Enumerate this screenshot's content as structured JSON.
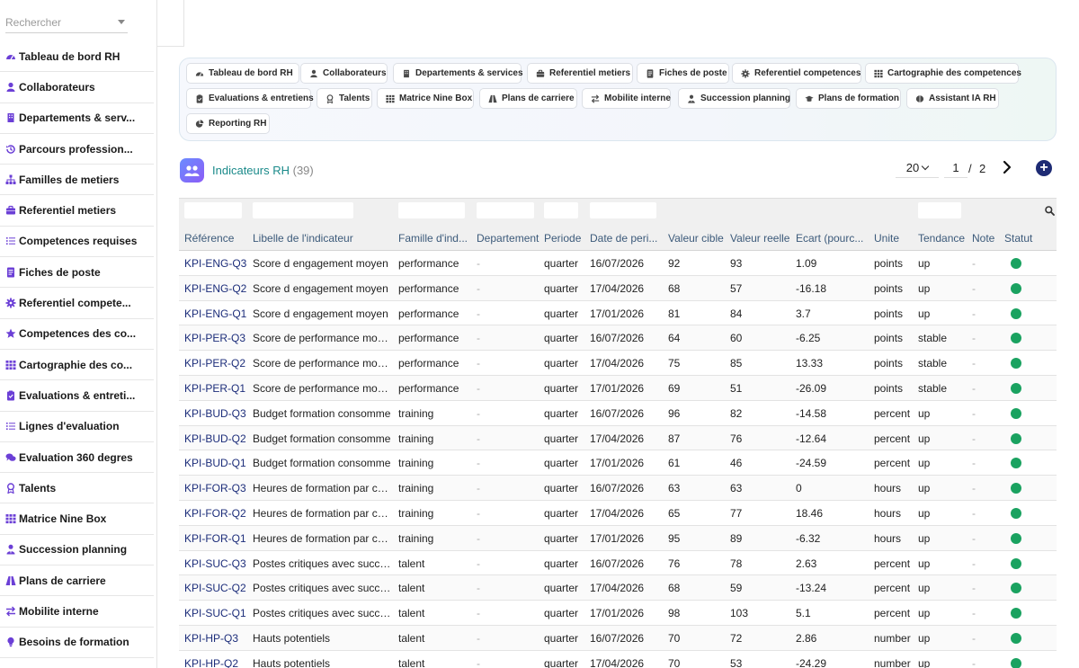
{
  "sidebar": {
    "search_placeholder": "Rechercher",
    "items": [
      {
        "label": "Tableau de bord RH",
        "icon": "dashboard-icon",
        "color": "#6b3fd6"
      },
      {
        "label": "Collaborateurs",
        "icon": "user-icon",
        "color": "#6b3fd6"
      },
      {
        "label": "Departements & serv...",
        "icon": "building-icon",
        "color": "#6b3fd6"
      },
      {
        "label": "Parcours profession...",
        "icon": "history-icon",
        "color": "#6b3fd6"
      },
      {
        "label": "Familles de metiers",
        "icon": "sitemap-icon",
        "color": "#6b3fd6"
      },
      {
        "label": "Referentiel metiers",
        "icon": "briefcase-icon",
        "color": "#6b3fd6"
      },
      {
        "label": "Competences requises",
        "icon": "list-icon",
        "color": "#6b3fd6"
      },
      {
        "label": "Fiches de poste",
        "icon": "file-icon",
        "color": "#6b3fd6"
      },
      {
        "label": "Referentiel compete...",
        "icon": "gear-icon",
        "color": "#6b3fd6"
      },
      {
        "label": "Competences des co...",
        "icon": "star-icon",
        "color": "#6b3fd6"
      },
      {
        "label": "Cartographie des co...",
        "icon": "grid-icon",
        "color": "#6b3fd6"
      },
      {
        "label": "Evaluations & entreti...",
        "icon": "clipboard-icon",
        "color": "#6b3fd6"
      },
      {
        "label": "Lignes d'evaluation",
        "icon": "list-icon",
        "color": "#6b3fd6"
      },
      {
        "label": "Evaluation 360 degres",
        "icon": "comments-icon",
        "color": "#6b3fd6"
      },
      {
        "label": "Talents",
        "icon": "award-icon",
        "color": "#6b3fd6"
      },
      {
        "label": "Matrice Nine Box",
        "icon": "grid-icon",
        "color": "#6b3fd6"
      },
      {
        "label": "Succession planning",
        "icon": "user-tie-icon",
        "color": "#6b3fd6"
      },
      {
        "label": "Plans de carriere",
        "icon": "road-icon",
        "color": "#6b3fd6"
      },
      {
        "label": "Mobilite interne",
        "icon": "exchange-icon",
        "color": "#6b3fd6"
      },
      {
        "label": "Besoins de formation",
        "icon": "lightbulb-icon",
        "color": "#6b3fd6"
      }
    ]
  },
  "tabs": [
    {
      "label": "Tableau de bord RH",
      "icon": "dashboard-icon"
    },
    {
      "label": "Collaborateurs",
      "icon": "user-icon"
    },
    {
      "label": "Departements & services",
      "icon": "building-icon"
    },
    {
      "label": "Referentiel metiers",
      "icon": "briefcase-icon"
    },
    {
      "label": "Fiches de poste",
      "icon": "file-icon"
    },
    {
      "label": "Referentiel competences",
      "icon": "gear-icon"
    },
    {
      "label": "Cartographie des competences",
      "icon": "grid-icon"
    },
    {
      "label": "Evaluations & entretiens",
      "icon": "clipboard-icon"
    },
    {
      "label": "Talents",
      "icon": "award-icon"
    },
    {
      "label": "Matrice Nine Box",
      "icon": "grid-icon"
    },
    {
      "label": "Plans de carriere",
      "icon": "road-icon"
    },
    {
      "label": "Mobilite interne",
      "icon": "exchange-icon"
    },
    {
      "label": "Succession planning",
      "icon": "user-tie-icon"
    },
    {
      "label": "Plans de formation",
      "icon": "graduation-icon"
    },
    {
      "label": "Assistant IA RH",
      "icon": "brain-icon"
    },
    {
      "label": "Reporting RH",
      "icon": "chart-pie-icon"
    }
  ],
  "header": {
    "title": "Indicateurs RH",
    "count": "(39)",
    "per_page": "20",
    "page_current": "1",
    "page_sep": "/",
    "page_total": "2",
    "add_label": "+"
  },
  "table": {
    "columns": [
      "Référence",
      "Libelle de l'indicateur",
      "Famille d'ind...",
      "Departement",
      "Periode",
      "Date de peri...",
      "Valeur cible",
      "Valeur reelle",
      "Ecart (pourc...",
      "Unite",
      "Tendance",
      "Note",
      "Statut"
    ],
    "rows": [
      [
        "KPI-ENG-Q3",
        "Score d engagement moyen",
        "performance",
        "-",
        "quarter",
        "16/07/2026",
        "92",
        "93",
        "1.09",
        "points",
        "up",
        "-"
      ],
      [
        "KPI-ENG-Q2",
        "Score d engagement moyen",
        "performance",
        "-",
        "quarter",
        "17/04/2026",
        "68",
        "57",
        "-16.18",
        "points",
        "up",
        "-"
      ],
      [
        "KPI-ENG-Q1",
        "Score d engagement moyen",
        "performance",
        "-",
        "quarter",
        "17/01/2026",
        "81",
        "84",
        "3.7",
        "points",
        "up",
        "-"
      ],
      [
        "KPI-PER-Q3",
        "Score de performance moyen",
        "performance",
        "-",
        "quarter",
        "16/07/2026",
        "64",
        "60",
        "-6.25",
        "points",
        "stable",
        "-"
      ],
      [
        "KPI-PER-Q2",
        "Score de performance moyen",
        "performance",
        "-",
        "quarter",
        "17/04/2026",
        "75",
        "85",
        "13.33",
        "points",
        "stable",
        "-"
      ],
      [
        "KPI-PER-Q1",
        "Score de performance moyen",
        "performance",
        "-",
        "quarter",
        "17/01/2026",
        "69",
        "51",
        "-26.09",
        "points",
        "stable",
        "-"
      ],
      [
        "KPI-BUD-Q3",
        "Budget formation consomme",
        "training",
        "-",
        "quarter",
        "16/07/2026",
        "96",
        "82",
        "-14.58",
        "percent",
        "up",
        "-"
      ],
      [
        "KPI-BUD-Q2",
        "Budget formation consomme",
        "training",
        "-",
        "quarter",
        "17/04/2026",
        "87",
        "76",
        "-12.64",
        "percent",
        "up",
        "-"
      ],
      [
        "KPI-BUD-Q1",
        "Budget formation consomme",
        "training",
        "-",
        "quarter",
        "17/01/2026",
        "61",
        "46",
        "-24.59",
        "percent",
        "up",
        "-"
      ],
      [
        "KPI-FOR-Q3",
        "Heures de formation par coll...",
        "training",
        "-",
        "quarter",
        "16/07/2026",
        "63",
        "63",
        "0",
        "hours",
        "up",
        "-"
      ],
      [
        "KPI-FOR-Q2",
        "Heures de formation par coll...",
        "training",
        "-",
        "quarter",
        "17/04/2026",
        "65",
        "77",
        "18.46",
        "hours",
        "up",
        "-"
      ],
      [
        "KPI-FOR-Q1",
        "Heures de formation par coll...",
        "training",
        "-",
        "quarter",
        "17/01/2026",
        "95",
        "89",
        "-6.32",
        "hours",
        "up",
        "-"
      ],
      [
        "KPI-SUC-Q3",
        "Postes critiques avec succe...",
        "talent",
        "-",
        "quarter",
        "16/07/2026",
        "76",
        "78",
        "2.63",
        "percent",
        "up",
        "-"
      ],
      [
        "KPI-SUC-Q2",
        "Postes critiques avec succe...",
        "talent",
        "-",
        "quarter",
        "17/04/2026",
        "68",
        "59",
        "-13.24",
        "percent",
        "up",
        "-"
      ],
      [
        "KPI-SUC-Q1",
        "Postes critiques avec succe...",
        "talent",
        "-",
        "quarter",
        "17/01/2026",
        "98",
        "103",
        "5.1",
        "percent",
        "up",
        "-"
      ],
      [
        "KPI-HP-Q3",
        "Hauts potentiels",
        "talent",
        "-",
        "quarter",
        "16/07/2026",
        "70",
        "72",
        "2.86",
        "number",
        "up",
        "-"
      ],
      [
        "KPI-HP-Q2",
        "Hauts potentiels",
        "talent",
        "-",
        "quarter",
        "17/04/2026",
        "70",
        "53",
        "-24.29",
        "number",
        "up",
        "-"
      ]
    ],
    "status_color": "#1aa260"
  }
}
